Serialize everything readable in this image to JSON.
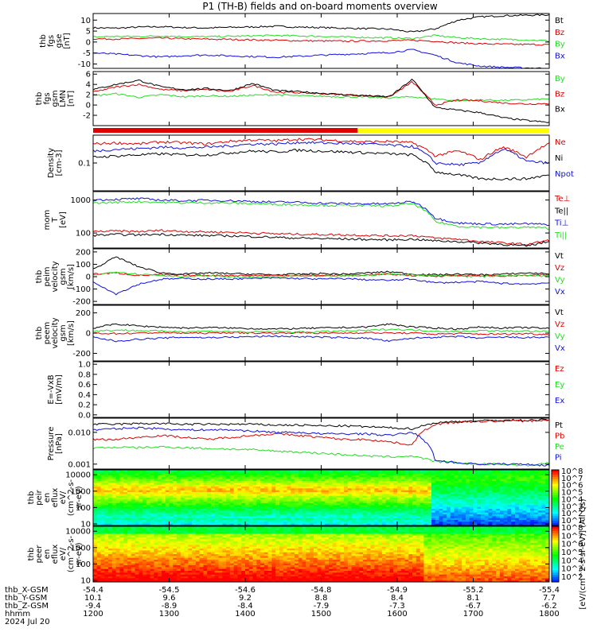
{
  "page_title": "P1 (TH-B) fields and on-board moments overview",
  "colors": {
    "black": "#000000",
    "red": "#e00000",
    "green": "#22dd22",
    "blue": "#1010e0",
    "yellow": "#ffff00"
  },
  "chart_data": [
    {
      "type": "line",
      "panel": "fgs_gse",
      "ylabel": [
        "thb",
        "fgs",
        "gse",
        "[nT]"
      ],
      "ylim": [
        -12,
        13
      ],
      "yticks": [
        "10",
        "5",
        "0",
        "-5",
        "-10"
      ],
      "ytick_values": [
        10,
        5,
        0,
        -5,
        -10
      ],
      "series": [
        {
          "name": "Bt",
          "color": "black",
          "values": [
            6.5,
            6.3,
            6.8,
            7.0,
            6.6,
            6.4,
            6.7,
            6.9,
            7.2,
            6.8,
            6.6,
            6.3,
            6.1,
            5.9,
            4.5,
            6.0,
            10.0,
            11.5,
            12.0,
            12.2,
            12.4
          ]
        },
        {
          "name": "Bz",
          "color": "red",
          "values": [
            1.5,
            1.4,
            1.6,
            1.8,
            1.5,
            1.3,
            1.2,
            1.0,
            0.8,
            0.6,
            0.5,
            0.4,
            0.5,
            0.6,
            0.8,
            0.4,
            -0.4,
            -0.8,
            -1.0,
            -1.1,
            -1.2
          ]
        },
        {
          "name": "By",
          "color": "green",
          "values": [
            2.3,
            2.6,
            2.5,
            2.8,
            2.5,
            2.4,
            2.6,
            2.8,
            3.0,
            2.8,
            2.6,
            2.3,
            2.1,
            1.9,
            1.6,
            3.0,
            2.0,
            1.5,
            1.2,
            1.0,
            0.5
          ]
        },
        {
          "name": "Bx",
          "color": "blue",
          "values": [
            -5.0,
            -5.5,
            -6.2,
            -6.8,
            -6.2,
            -5.9,
            -6.3,
            -6.6,
            -6.9,
            -6.5,
            -6.0,
            -5.6,
            -5.2,
            -4.8,
            -3.5,
            -6.0,
            -9.5,
            -11.0,
            -11.5,
            -11.8,
            -12.0
          ]
        }
      ]
    },
    {
      "type": "line",
      "panel": "fgs_gsm_lmn",
      "ylabel": [
        "thb",
        "fgs",
        "gsm",
        "LMN",
        "[nT]"
      ],
      "ylim": [
        -4,
        6.5
      ],
      "yticks": [
        "6",
        "4",
        "2",
        "0",
        "-2"
      ],
      "ytick_values": [
        6,
        4,
        2,
        0,
        -2
      ],
      "series": [
        {
          "name": "By",
          "color": "green",
          "values": [
            1.8,
            2.2,
            1.5,
            2.0,
            1.6,
            1.8,
            1.7,
            1.9,
            2.0,
            1.8,
            1.7,
            1.6,
            1.5,
            1.4,
            1.6,
            1.2,
            0.8,
            1.0,
            0.9,
            1.0,
            1.2
          ]
        },
        {
          "name": "Bz",
          "color": "red",
          "values": [
            2.5,
            3.5,
            4.0,
            3.0,
            2.8,
            3.0,
            2.6,
            3.8,
            2.5,
            2.4,
            2.2,
            2.0,
            1.8,
            1.6,
            4.5,
            0.0,
            1.0,
            0.8,
            0.4,
            0.2,
            0.3
          ]
        },
        {
          "name": "Bx",
          "color": "black",
          "values": [
            3.0,
            4.0,
            4.8,
            3.5,
            3.0,
            3.2,
            2.8,
            4.2,
            2.8,
            2.6,
            2.3,
            2.0,
            1.8,
            1.6,
            5.0,
            -0.5,
            -1.0,
            -1.5,
            -2.5,
            -3.0,
            -3.4
          ]
        }
      ]
    },
    {
      "type": "line",
      "panel": "density",
      "ylabel": [
        "Density",
        "[cm-3]"
      ],
      "yscale": "log",
      "ylim": [
        0.02,
        0.5
      ],
      "yticks": [
        "0.1"
      ],
      "ytick_values": [
        0.1
      ],
      "series": [
        {
          "name": "Ne",
          "color": "red",
          "values": [
            0.3,
            0.32,
            0.3,
            0.34,
            0.32,
            0.3,
            0.35,
            0.38,
            0.36,
            0.4,
            0.38,
            0.36,
            0.34,
            0.35,
            0.32,
            0.15,
            0.2,
            0.12,
            0.25,
            0.14,
            0.3
          ]
        },
        {
          "name": "Ni",
          "color": "black",
          "values": [
            0.14,
            0.15,
            0.16,
            0.17,
            0.16,
            0.16,
            0.18,
            0.2,
            0.19,
            0.21,
            0.2,
            0.19,
            0.18,
            0.17,
            0.16,
            0.06,
            0.05,
            0.04,
            0.04,
            0.04,
            0.05
          ]
        },
        {
          "name": "Npot",
          "color": "blue",
          "values": [
            0.2,
            0.22,
            0.23,
            0.25,
            0.24,
            0.25,
            0.27,
            0.3,
            0.3,
            0.33,
            0.32,
            0.31,
            0.3,
            0.28,
            0.26,
            0.1,
            0.09,
            0.1,
            0.22,
            0.11,
            0.1
          ]
        }
      ]
    },
    {
      "type": "line",
      "panel": "temperature",
      "ylabel": [
        "mom",
        "T",
        "[eV]"
      ],
      "yscale": "log",
      "ylim": [
        35,
        1800
      ],
      "yticks": [
        "1000",
        "100"
      ],
      "ytick_values": [
        1000,
        100
      ],
      "series": [
        {
          "name": "Te⊥",
          "color": "red",
          "values": [
            110,
            115,
            110,
            120,
            112,
            108,
            105,
            100,
            95,
            92,
            90,
            88,
            85,
            82,
            85,
            70,
            65,
            55,
            50,
            45,
            60
          ]
        },
        {
          "name": "Te||",
          "color": "black",
          "values": [
            85,
            90,
            88,
            92,
            86,
            84,
            82,
            78,
            74,
            70,
            68,
            66,
            64,
            62,
            65,
            58,
            55,
            50,
            45,
            40,
            55
          ]
        },
        {
          "name": "Ti⊥",
          "color": "blue",
          "values": [
            1000,
            1050,
            1100,
            1000,
            950,
            980,
            960,
            900,
            870,
            850,
            800,
            780,
            770,
            760,
            900,
            280,
            200,
            190,
            185,
            190,
            180
          ]
        },
        {
          "name": "Ti||",
          "color": "green",
          "values": [
            800,
            850,
            900,
            850,
            820,
            830,
            810,
            780,
            750,
            720,
            700,
            680,
            670,
            660,
            780,
            220,
            160,
            150,
            145,
            150,
            140
          ]
        }
      ]
    },
    {
      "type": "line",
      "panel": "ion_velocity",
      "ylabel": [
        "thb",
        "peim",
        "velocity",
        "gsm",
        "[km/s]"
      ],
      "ylim": [
        -225,
        225
      ],
      "yticks": [
        "200",
        "100",
        "0",
        "-100",
        "-200"
      ],
      "ytick_values": [
        200,
        100,
        0,
        -100,
        -200
      ],
      "series": [
        {
          "name": "Vt",
          "color": "black",
          "values": [
            60,
            160,
            80,
            30,
            20,
            30,
            25,
            20,
            15,
            20,
            25,
            20,
            30,
            40,
            20,
            15,
            20,
            15,
            20,
            30,
            25
          ]
        },
        {
          "name": "Vz",
          "color": "red",
          "values": [
            20,
            30,
            10,
            15,
            10,
            12,
            10,
            8,
            10,
            12,
            10,
            12,
            15,
            20,
            10,
            5,
            10,
            8,
            5,
            10,
            15
          ]
        },
        {
          "name": "Vy",
          "color": "green",
          "values": [
            10,
            40,
            20,
            10,
            0,
            5,
            0,
            -5,
            0,
            5,
            0,
            5,
            10,
            20,
            15,
            10,
            5,
            0,
            10,
            10,
            5
          ]
        },
        {
          "name": "Vx",
          "color": "blue",
          "values": [
            -40,
            -140,
            -60,
            -20,
            -15,
            -20,
            -18,
            -15,
            -10,
            -15,
            -20,
            -15,
            -25,
            -30,
            -20,
            -50,
            -45,
            -40,
            -55,
            -60,
            -50
          ]
        }
      ]
    },
    {
      "type": "line",
      "panel": "electron_velocity",
      "ylabel": [
        "thb",
        "peem",
        "velocity",
        "gsm",
        "[km/s]"
      ],
      "ylim": [
        -275,
        275
      ],
      "yticks": [
        "200",
        "0",
        "-200"
      ],
      "ytick_values": [
        200,
        0,
        -200
      ],
      "series": [
        {
          "name": "Vt",
          "color": "black",
          "values": [
            50,
            90,
            70,
            60,
            50,
            55,
            50,
            45,
            40,
            45,
            50,
            55,
            60,
            90,
            60,
            50,
            40,
            60,
            50,
            55,
            45
          ]
        },
        {
          "name": "Vz",
          "color": "red",
          "values": [
            0,
            -5,
            0,
            5,
            0,
            0,
            5,
            0,
            0,
            5,
            0,
            0,
            5,
            0,
            0,
            -10,
            -5,
            -10,
            -10,
            -5,
            -15
          ]
        },
        {
          "name": "Vy",
          "color": "green",
          "values": [
            20,
            30,
            25,
            20,
            15,
            20,
            15,
            10,
            15,
            10,
            15,
            20,
            25,
            40,
            30,
            20,
            15,
            25,
            20,
            20,
            15
          ]
        },
        {
          "name": "Vx",
          "color": "blue",
          "values": [
            -40,
            -80,
            -60,
            -50,
            -40,
            -45,
            -40,
            -35,
            -30,
            -35,
            -40,
            -45,
            -50,
            -80,
            -50,
            -40,
            -35,
            -50,
            -40,
            -45,
            -40
          ]
        }
      ]
    },
    {
      "type": "line",
      "panel": "efield",
      "ylabel": [
        "E=-VxB",
        "[mV/m]"
      ],
      "ylim": [
        -0.05,
        1.05
      ],
      "yticks": [
        "1.0",
        "0.8",
        "0.6",
        "0.4",
        "0.2",
        "0.0"
      ],
      "ytick_values": [
        1.0,
        0.8,
        0.6,
        0.4,
        0.2,
        0.0
      ],
      "series": [
        {
          "name": "Ez",
          "color": "red",
          "values": []
        },
        {
          "name": "Ey",
          "color": "green",
          "values": []
        },
        {
          "name": "Ex",
          "color": "blue",
          "values": []
        }
      ]
    },
    {
      "type": "line",
      "panel": "pressure",
      "ylabel": [
        "Pressure",
        "[nPa]"
      ],
      "yscale": "log",
      "ylim": [
        0.0007,
        0.028
      ],
      "yticks": [
        "0.010",
        "0.001"
      ],
      "ytick_values": [
        0.01,
        0.001
      ],
      "series": [
        {
          "name": "Pt",
          "color": "black",
          "values": [
            0.018,
            0.018,
            0.019,
            0.019,
            0.018,
            0.018,
            0.018,
            0.018,
            0.017,
            0.017,
            0.016,
            0.016,
            0.015,
            0.014,
            0.013,
            0.02,
            0.022,
            0.023,
            0.024,
            0.024,
            0.025
          ]
        },
        {
          "name": "Pb",
          "color": "red",
          "values": [
            0.006,
            0.006,
            0.007,
            0.008,
            0.007,
            0.006,
            0.007,
            0.008,
            0.009,
            0.008,
            0.007,
            0.006,
            0.006,
            0.005,
            0.004,
            0.018,
            0.021,
            0.022,
            0.023,
            0.023,
            0.024
          ]
        },
        {
          "name": "Pe",
          "color": "green",
          "values": [
            0.0032,
            0.0034,
            0.0033,
            0.0035,
            0.0033,
            0.0031,
            0.003,
            0.0028,
            0.0026,
            0.0024,
            0.0022,
            0.002,
            0.0018,
            0.0017,
            0.0018,
            0.0012,
            0.0011,
            0.001,
            0.001,
            0.0009,
            0.0011
          ]
        },
        {
          "name": "Pi",
          "color": "blue",
          "values": [
            0.012,
            0.013,
            0.014,
            0.013,
            0.012,
            0.012,
            0.012,
            0.011,
            0.01,
            0.01,
            0.009,
            0.009,
            0.009,
            0.008,
            0.01,
            0.0013,
            0.0011,
            0.001,
            0.001,
            0.001,
            0.0009
          ]
        }
      ]
    },
    {
      "type": "heatmap",
      "panel": "peir_eflux",
      "ylabel": [
        "thb",
        "peir",
        "en",
        "eflux",
        "eV/",
        "(cm^2-s-",
        "sr-eV)"
      ],
      "yscale": "log",
      "ylim": [
        8,
        20000
      ],
      "yticks": [
        "10000",
        "1000",
        "100",
        "10"
      ],
      "ytick_values": [
        10000,
        1000,
        100,
        10
      ],
      "colorbar_ticks": [
        "10^8",
        "10^7",
        "10^6",
        "10^5",
        "10^4",
        "10^3",
        "10^2",
        "10^1"
      ]
    },
    {
      "type": "heatmap",
      "panel": "peer_eflux",
      "ylabel": [
        "thb",
        "peer",
        "en",
        "eflux",
        "eV/",
        "(cm^2-s-",
        "sr-eV)"
      ],
      "yscale": "log",
      "ylim": [
        8,
        20000
      ],
      "yticks": [
        "10000",
        "1000",
        "100",
        "10"
      ],
      "ytick_values": [
        10000,
        1000,
        100,
        10
      ],
      "colorbar_ticks": [
        "10^8",
        "10^7",
        "10^6",
        "10^5",
        "10^4",
        "10^3",
        "10^2"
      ]
    }
  ],
  "colorbar_label": "[eV/(cm^2-s-sr-eV)] (All Qs)",
  "mode_bar": {
    "segments": [
      {
        "color": "red",
        "fraction": 0.58
      },
      {
        "color": "yellow",
        "fraction": 0.42
      }
    ]
  },
  "ephemeris": {
    "rows": [
      {
        "label": "thb_X-GSM",
        "values": [
          "-54.4",
          "-54.5",
          "-54.6",
          "-54.8",
          "-54.9",
          "-55.2",
          "-55.4"
        ]
      },
      {
        "label": "thb_Y-GSM",
        "values": [
          "10.1",
          "9.6",
          "9.2",
          "8.8",
          "8.4",
          "8.1",
          "7.7"
        ]
      },
      {
        "label": "thb_Z-GSM",
        "values": [
          "-9.4",
          "-8.9",
          "-8.4",
          "-7.9",
          "-7.3",
          "-6.7",
          "-6.2"
        ]
      },
      {
        "label": "hhmm",
        "values": [
          "1200",
          "1300",
          "1400",
          "1500",
          "1600",
          "1700",
          "1800"
        ]
      }
    ],
    "date": "2024 Jul 20"
  }
}
